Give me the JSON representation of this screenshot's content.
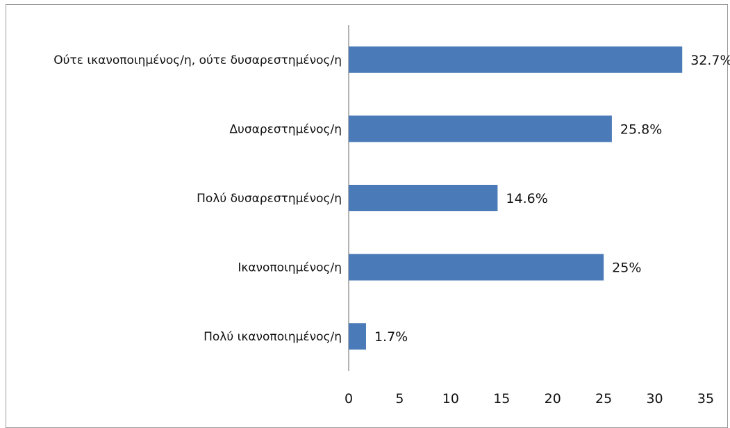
{
  "chart_data": {
    "type": "bar",
    "orientation": "horizontal",
    "categories": [
      "Ούτε ικανοποιημένος/η, ούτε δυσαρεστημένος/η",
      "Δυσαρεστημένος/η",
      "Πολύ δυσαρεστημένος/η",
      "Ικανοποιημένος/η",
      "Πολύ ικανοποιημένος/η"
    ],
    "values": [
      32.7,
      25.8,
      14.6,
      25,
      1.7
    ],
    "data_labels": [
      "32.7%",
      "25.8%",
      "14.6%",
      "25%",
      "1.7%"
    ],
    "xlim": [
      0,
      35
    ],
    "xticks": [
      0,
      5,
      10,
      15,
      20,
      25,
      30,
      35
    ],
    "grid": false,
    "legend": "none",
    "bar_color": "#4a7ab7"
  }
}
